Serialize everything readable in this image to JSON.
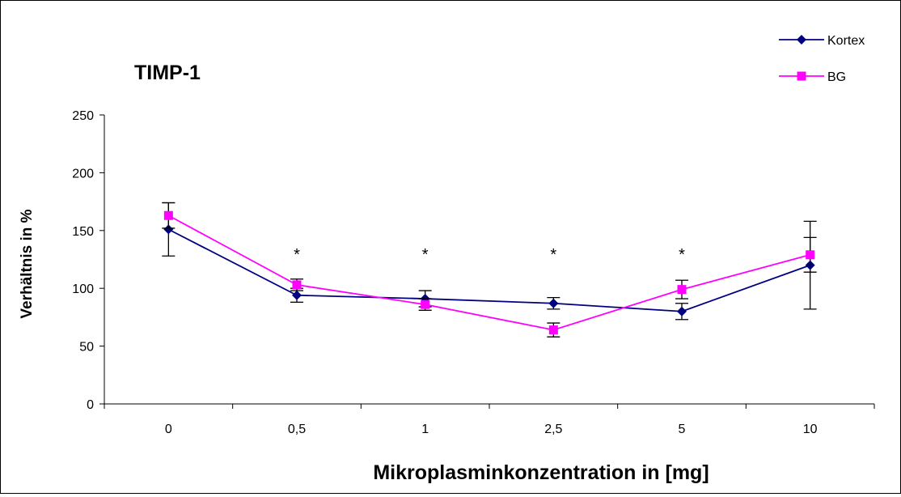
{
  "chart_data": {
    "type": "line",
    "title": "TIMP-1",
    "xlabel": "Mikroplasminkonzentration in [mg]",
    "ylabel": "Verhältnis in %",
    "categories": [
      "0",
      "0,5",
      "1",
      "2,5",
      "5",
      "10"
    ],
    "ylim": [
      0,
      250
    ],
    "yticks": [
      0,
      50,
      100,
      150,
      200,
      250
    ],
    "grid": false,
    "legend_position": "top-right",
    "series": [
      {
        "name": "Kortex",
        "color": "#000080",
        "marker": "diamond",
        "values": [
          151,
          94,
          91,
          87,
          80,
          120
        ],
        "error": [
          23,
          6,
          7,
          5,
          7,
          38
        ]
      },
      {
        "name": "BG",
        "color": "#ff00ff",
        "marker": "square",
        "values": [
          163,
          103,
          86,
          64,
          99,
          129
        ],
        "error": [
          11,
          5,
          5,
          6,
          8,
          15
        ]
      }
    ],
    "annotations": [
      {
        "category": "0,5",
        "text": "*"
      },
      {
        "category": "1",
        "text": "*"
      },
      {
        "category": "2,5",
        "text": "*"
      },
      {
        "category": "5",
        "text": "*"
      }
    ]
  }
}
